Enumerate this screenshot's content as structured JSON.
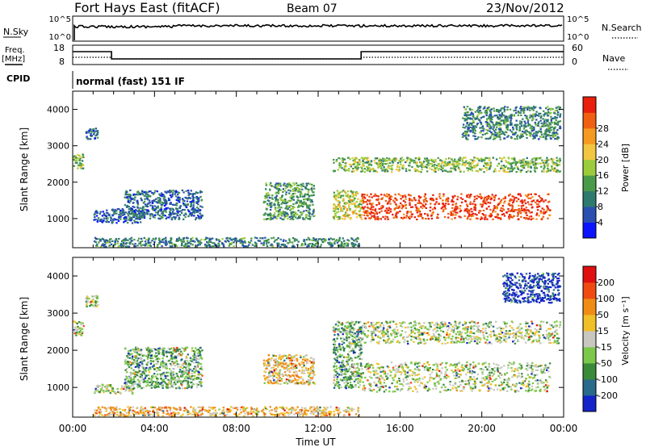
{
  "header": {
    "station": "Fort Hays East (fitACF)",
    "beam": "Beam 07",
    "date": "23/Nov/2012"
  },
  "top_panels": {
    "nsky_label": "N.Sky",
    "nsky_ticks": [
      "10^5",
      "10^0"
    ],
    "nsearch_label": "N.Search",
    "nsearch_ticks": [
      "10^5",
      "10^0"
    ],
    "freq_label": "Freq.",
    "freq_unit": "[MHz]",
    "freq_ticks": [
      "18",
      "8"
    ],
    "nave_label": "Nave",
    "nave_ticks": [
      "60",
      "0"
    ],
    "cpid_label": "CPID",
    "cpid_value": "normal (fast) 151 IF"
  },
  "chart_data": [
    {
      "type": "heatmap",
      "name": "power-panel",
      "ylabel": "Slant Range [km]",
      "ylim": [
        200,
        4500
      ],
      "yticks": [
        "1000",
        "2000",
        "3000",
        "4000"
      ],
      "xlim": [
        0,
        24
      ],
      "colorbar": {
        "label": "Power [dB]",
        "ticks": [
          "4",
          "8",
          "12",
          "16",
          "20",
          "24",
          "28"
        ],
        "colors": [
          "#0a14ff",
          "#2a4fb0",
          "#2e7a6e",
          "#4a9a4a",
          "#9ccc3c",
          "#f2c640",
          "#f59a20",
          "#f06010",
          "#e8200c"
        ]
      },
      "regions": [
        {
          "t0": 0.0,
          "t1": 0.5,
          "r0": 2400,
          "r1": 2800,
          "level": 0.45
        },
        {
          "t0": 0.6,
          "t1": 1.2,
          "r0": 3200,
          "r1": 3500,
          "level": 0.25
        },
        {
          "t0": 1.0,
          "t1": 3.5,
          "r0": 900,
          "r1": 1300,
          "level": 0.2
        },
        {
          "t0": 2.5,
          "t1": 6.3,
          "r0": 1000,
          "r1": 1800,
          "level": 0.22
        },
        {
          "t0": 9.3,
          "t1": 11.8,
          "r0": 1000,
          "r1": 2000,
          "level": 0.35
        },
        {
          "t0": 12.7,
          "t1": 23.8,
          "r0": 2300,
          "r1": 2700,
          "level": 0.45
        },
        {
          "t0": 12.7,
          "t1": 14.1,
          "r0": 1000,
          "r1": 1800,
          "level": 0.55
        },
        {
          "t0": 14.1,
          "t1": 23.3,
          "r0": 1000,
          "r1": 1700,
          "level": 0.92
        },
        {
          "t0": 19.0,
          "t1": 23.8,
          "r0": 3200,
          "r1": 4100,
          "level": 0.3
        },
        {
          "t0": 1.0,
          "t1": 14.0,
          "r0": 250,
          "r1": 500,
          "level": 0.3
        }
      ]
    },
    {
      "type": "heatmap",
      "name": "velocity-panel",
      "ylabel": "Slant Range [km]",
      "ylim": [
        200,
        4500
      ],
      "yticks": [
        "1000",
        "2000",
        "3000",
        "4000"
      ],
      "xlabel": "Time UT",
      "xlim": [
        0,
        24
      ],
      "xticks": [
        "00:00",
        "04:00",
        "08:00",
        "12:00",
        "16:00",
        "20:00",
        "00:00"
      ],
      "colorbar": {
        "label": "Velocity [m s⁻¹]",
        "ticks": [
          "200",
          "100",
          "50",
          "15",
          "-15",
          "-50",
          "-100",
          "-200"
        ],
        "colors": [
          "#1424c8",
          "#2a6a8a",
          "#3a8a3a",
          "#7cc84a",
          "#c8c8c0",
          "#f0c028",
          "#f08c14",
          "#f04a10",
          "#e01010"
        ]
      },
      "regions": [
        {
          "t0": 0.0,
          "t1": 0.5,
          "r0": 2400,
          "r1": 2800,
          "level": 0.45
        },
        {
          "t0": 0.6,
          "t1": 1.2,
          "r0": 3200,
          "r1": 3500,
          "level": 0.45
        },
        {
          "t0": 1.0,
          "t1": 3.0,
          "r0": 850,
          "r1": 1100,
          "level": 0.45
        },
        {
          "t0": 2.5,
          "t1": 6.3,
          "r0": 1000,
          "r1": 2100,
          "level": 0.35
        },
        {
          "t0": 9.3,
          "t1": 11.8,
          "r0": 1100,
          "r1": 1900,
          "level": 0.6
        },
        {
          "t0": 12.7,
          "t1": 14.1,
          "r0": 1000,
          "r1": 2800,
          "level": 0.35
        },
        {
          "t0": 14.1,
          "t1": 23.3,
          "r0": 900,
          "r1": 1700,
          "level": 0.45
        },
        {
          "t0": 14.1,
          "t1": 23.8,
          "r0": 2200,
          "r1": 2800,
          "level": 0.45
        },
        {
          "t0": 21.0,
          "t1": 23.8,
          "r0": 3300,
          "r1": 4100,
          "level": 0.05
        },
        {
          "t0": 1.0,
          "t1": 14.0,
          "r0": 250,
          "r1": 500,
          "level": 0.62
        }
      ]
    }
  ]
}
